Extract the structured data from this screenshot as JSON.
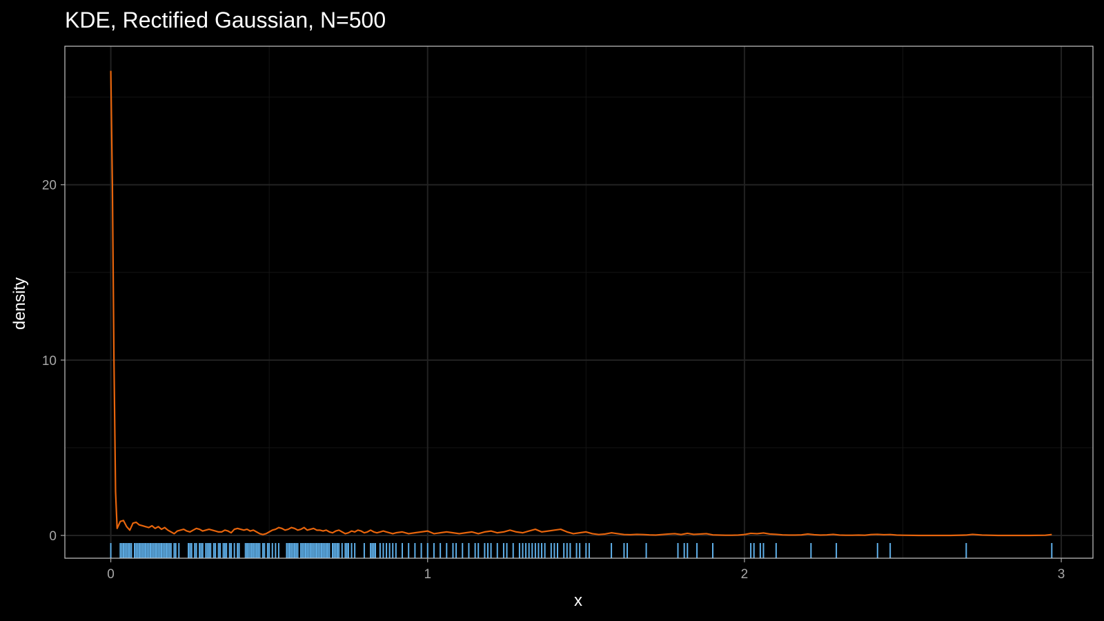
{
  "chart_data": {
    "type": "line",
    "title": "KDE, Rectified Gaussian, N=500",
    "xlabel": "x",
    "ylabel": "density",
    "xlim": [
      -0.145,
      3.1
    ],
    "ylim": [
      -1.3,
      27.9
    ],
    "x_ticks": [
      0,
      1,
      2,
      3
    ],
    "y_ticks": [
      0,
      10,
      20
    ],
    "x_minor_ticks": [
      0.5,
      1.5,
      2.5
    ],
    "y_minor_ticks": [
      5,
      15,
      25
    ],
    "grid": true,
    "legend": "none",
    "colors": {
      "background": "#000000",
      "panel_border": "#c8c8c8",
      "grid_major": "#222222",
      "grid_minor": "#141414",
      "density_line": "#e8650c",
      "rug": "#5fb0ea"
    },
    "series": [
      {
        "style": "line",
        "x": [
          0.0,
          0.005,
          0.01,
          0.015,
          0.02,
          0.025,
          0.03,
          0.04,
          0.05,
          0.06,
          0.07,
          0.08,
          0.09,
          0.1,
          0.11,
          0.12,
          0.13,
          0.14,
          0.15,
          0.16,
          0.17,
          0.18,
          0.19,
          0.2,
          0.21,
          0.22,
          0.23,
          0.24,
          0.25,
          0.26,
          0.27,
          0.28,
          0.29,
          0.3,
          0.31,
          0.32,
          0.33,
          0.34,
          0.35,
          0.36,
          0.37,
          0.38,
          0.39,
          0.4,
          0.41,
          0.42,
          0.43,
          0.44,
          0.45,
          0.46,
          0.47,
          0.48,
          0.49,
          0.5,
          0.51,
          0.52,
          0.53,
          0.54,
          0.55,
          0.56,
          0.57,
          0.58,
          0.59,
          0.6,
          0.61,
          0.62,
          0.63,
          0.64,
          0.65,
          0.66,
          0.67,
          0.68,
          0.69,
          0.7,
          0.71,
          0.72,
          0.73,
          0.74,
          0.75,
          0.76,
          0.77,
          0.78,
          0.79,
          0.8,
          0.81,
          0.82,
          0.83,
          0.84,
          0.85,
          0.86,
          0.87,
          0.88,
          0.89,
          0.9,
          0.92,
          0.94,
          0.96,
          0.98,
          1.0,
          1.02,
          1.04,
          1.06,
          1.08,
          1.1,
          1.12,
          1.14,
          1.16,
          1.18,
          1.2,
          1.22,
          1.24,
          1.26,
          1.28,
          1.3,
          1.32,
          1.34,
          1.36,
          1.38,
          1.4,
          1.42,
          1.44,
          1.46,
          1.48,
          1.5,
          1.52,
          1.54,
          1.56,
          1.58,
          1.6,
          1.62,
          1.64,
          1.66,
          1.68,
          1.7,
          1.72,
          1.74,
          1.76,
          1.78,
          1.8,
          1.82,
          1.84,
          1.86,
          1.88,
          1.9,
          1.92,
          1.94,
          1.96,
          1.98,
          2.0,
          2.02,
          2.04,
          2.06,
          2.08,
          2.1,
          2.12,
          2.14,
          2.16,
          2.18,
          2.2,
          2.22,
          2.24,
          2.26,
          2.28,
          2.3,
          2.32,
          2.34,
          2.36,
          2.38,
          2.4,
          2.42,
          2.44,
          2.46,
          2.48,
          2.5,
          2.55,
          2.6,
          2.65,
          2.7,
          2.72,
          2.75,
          2.8,
          2.85,
          2.9,
          2.95,
          2.97
        ],
        "y": [
          26.5,
          20.0,
          10.0,
          2.5,
          0.4,
          0.6,
          0.8,
          0.85,
          0.5,
          0.3,
          0.7,
          0.75,
          0.6,
          0.55,
          0.5,
          0.45,
          0.55,
          0.4,
          0.5,
          0.35,
          0.45,
          0.3,
          0.2,
          0.1,
          0.25,
          0.3,
          0.35,
          0.25,
          0.2,
          0.3,
          0.4,
          0.35,
          0.25,
          0.3,
          0.35,
          0.3,
          0.25,
          0.2,
          0.2,
          0.3,
          0.25,
          0.15,
          0.35,
          0.4,
          0.35,
          0.3,
          0.35,
          0.25,
          0.3,
          0.2,
          0.1,
          0.05,
          0.1,
          0.2,
          0.3,
          0.35,
          0.45,
          0.4,
          0.3,
          0.35,
          0.45,
          0.4,
          0.3,
          0.35,
          0.45,
          0.3,
          0.35,
          0.4,
          0.3,
          0.3,
          0.25,
          0.3,
          0.2,
          0.15,
          0.25,
          0.3,
          0.2,
          0.1,
          0.15,
          0.25,
          0.2,
          0.3,
          0.25,
          0.15,
          0.2,
          0.3,
          0.2,
          0.15,
          0.2,
          0.25,
          0.2,
          0.15,
          0.1,
          0.15,
          0.2,
          0.1,
          0.15,
          0.2,
          0.25,
          0.1,
          0.15,
          0.2,
          0.15,
          0.1,
          0.15,
          0.2,
          0.1,
          0.2,
          0.25,
          0.15,
          0.2,
          0.3,
          0.2,
          0.15,
          0.25,
          0.35,
          0.2,
          0.25,
          0.3,
          0.35,
          0.2,
          0.1,
          0.15,
          0.2,
          0.1,
          0.05,
          0.08,
          0.15,
          0.1,
          0.05,
          0.04,
          0.06,
          0.05,
          0.03,
          0.02,
          0.05,
          0.08,
          0.1,
          0.05,
          0.12,
          0.06,
          0.08,
          0.1,
          0.03,
          0.02,
          0.01,
          0.01,
          0.02,
          0.05,
          0.12,
          0.1,
          0.14,
          0.08,
          0.06,
          0.03,
          0.02,
          0.02,
          0.03,
          0.08,
          0.04,
          0.02,
          0.03,
          0.06,
          0.02,
          0.01,
          0.01,
          0.02,
          0.01,
          0.05,
          0.06,
          0.04,
          0.05,
          0.02,
          0.01,
          0.0,
          0.0,
          0.0,
          0.02,
          0.06,
          0.02,
          0.0,
          0.0,
          0.0,
          0.01,
          0.05
        ]
      },
      {
        "style": "rug",
        "x": [
          0.0,
          0.03,
          0.035,
          0.04,
          0.045,
          0.05,
          0.055,
          0.06,
          0.065,
          0.075,
          0.08,
          0.085,
          0.09,
          0.095,
          0.1,
          0.105,
          0.11,
          0.115,
          0.12,
          0.125,
          0.13,
          0.135,
          0.14,
          0.145,
          0.15,
          0.155,
          0.16,
          0.165,
          0.17,
          0.175,
          0.18,
          0.185,
          0.19,
          0.2,
          0.205,
          0.215,
          0.245,
          0.25,
          0.255,
          0.265,
          0.27,
          0.28,
          0.285,
          0.29,
          0.3,
          0.305,
          0.31,
          0.315,
          0.325,
          0.33,
          0.34,
          0.345,
          0.355,
          0.36,
          0.365,
          0.375,
          0.38,
          0.39,
          0.4,
          0.405,
          0.425,
          0.43,
          0.435,
          0.44,
          0.445,
          0.45,
          0.455,
          0.46,
          0.465,
          0.47,
          0.48,
          0.485,
          0.495,
          0.5,
          0.51,
          0.52,
          0.53,
          0.555,
          0.56,
          0.565,
          0.57,
          0.575,
          0.58,
          0.585,
          0.59,
          0.6,
          0.605,
          0.61,
          0.615,
          0.62,
          0.625,
          0.63,
          0.635,
          0.64,
          0.645,
          0.65,
          0.655,
          0.66,
          0.665,
          0.67,
          0.675,
          0.68,
          0.685,
          0.69,
          0.7,
          0.705,
          0.71,
          0.715,
          0.72,
          0.73,
          0.74,
          0.745,
          0.75,
          0.76,
          0.77,
          0.8,
          0.82,
          0.825,
          0.83,
          0.835,
          0.85,
          0.86,
          0.87,
          0.88,
          0.89,
          0.9,
          0.92,
          0.94,
          0.96,
          0.98,
          1.0,
          1.02,
          1.04,
          1.06,
          1.08,
          1.09,
          1.11,
          1.13,
          1.15,
          1.16,
          1.18,
          1.19,
          1.2,
          1.22,
          1.24,
          1.25,
          1.27,
          1.29,
          1.3,
          1.31,
          1.32,
          1.33,
          1.34,
          1.35,
          1.36,
          1.37,
          1.39,
          1.4,
          1.41,
          1.43,
          1.44,
          1.45,
          1.47,
          1.48,
          1.5,
          1.51,
          1.58,
          1.62,
          1.63,
          1.69,
          1.79,
          1.81,
          1.82,
          1.85,
          1.9,
          2.02,
          2.03,
          2.05,
          2.06,
          2.1,
          2.21,
          2.29,
          2.42,
          2.46,
          2.7,
          2.97
        ]
      }
    ]
  }
}
